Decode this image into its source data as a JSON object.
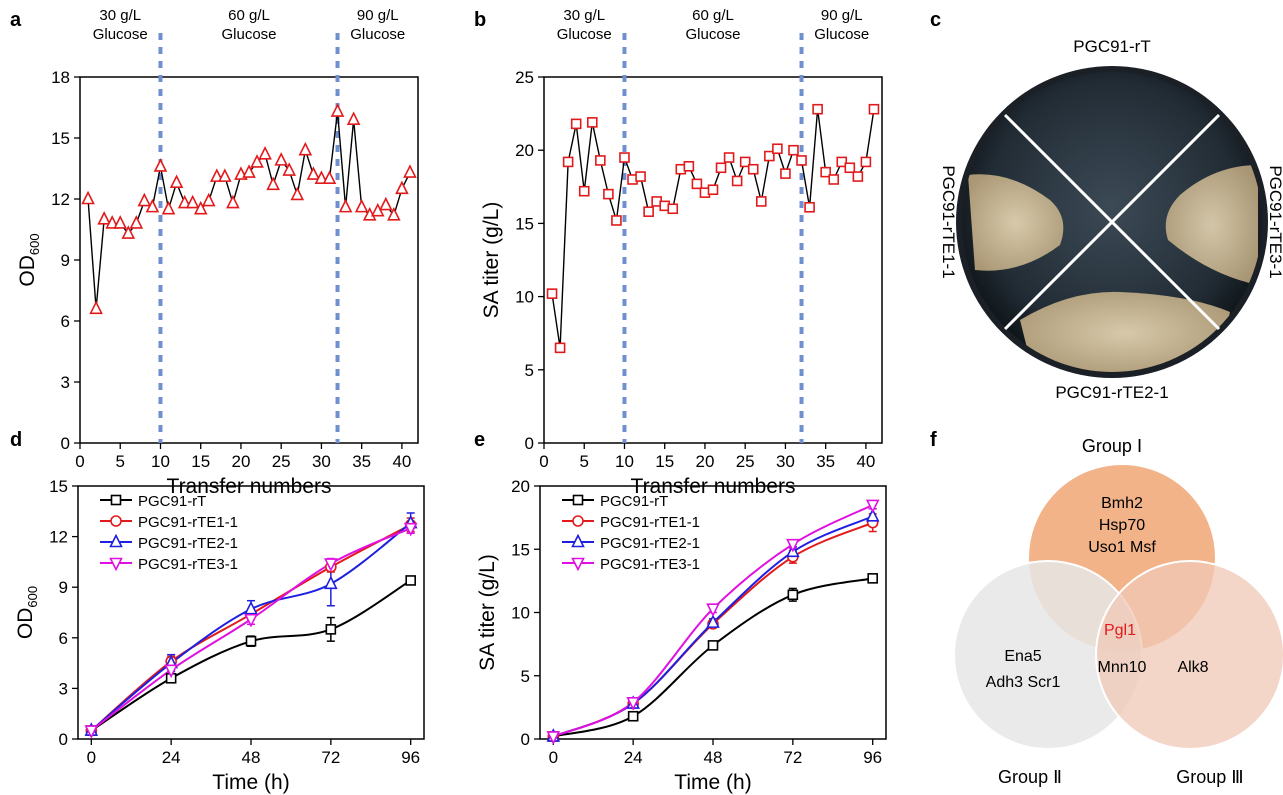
{
  "colors": {
    "red": "#e31a1c",
    "black": "#000000",
    "blue": "#1f1fe0",
    "magenta": "#e010e0",
    "divider": "#6f8fd0",
    "group1": "#f2b389",
    "group2": "#e6e6e6",
    "group3": "#f0c8b6",
    "pgl1": "#e31a1c"
  },
  "panel_labels": {
    "a": "a",
    "b": "b",
    "c": "c",
    "d": "d",
    "e": "e",
    "f": "f"
  },
  "chart_data": [
    {
      "id": "a",
      "type": "line",
      "marker": "triangle-up",
      "xlabel": "Transfer numbers",
      "ylabel": "OD",
      "ylabel_sub": "600",
      "xlim": [
        0,
        42
      ],
      "ylim": [
        0,
        18
      ],
      "xticks": [
        0,
        5,
        10,
        15,
        20,
        25,
        30,
        35,
        40
      ],
      "yticks": [
        0,
        3,
        6,
        9,
        12,
        15,
        18
      ],
      "dividers": [
        10,
        32
      ],
      "segments": [
        {
          "line1": "30 g/L",
          "line2": "Glucose"
        },
        {
          "line1": "60 g/L",
          "line2": "Glucose"
        },
        {
          "line1": "90 g/L",
          "line2": "Glucose"
        }
      ],
      "x": [
        1,
        2,
        3,
        4,
        5,
        6,
        7,
        8,
        9,
        10,
        11,
        12,
        13,
        14,
        15,
        16,
        17,
        18,
        19,
        20,
        21,
        22,
        23,
        24,
        25,
        26,
        27,
        28,
        29,
        30,
        31,
        32,
        33,
        34,
        35,
        36,
        37,
        38,
        39,
        40,
        41
      ],
      "values": [
        12.0,
        6.6,
        11.0,
        10.8,
        10.8,
        10.3,
        10.8,
        11.9,
        11.6,
        13.6,
        11.5,
        12.8,
        11.8,
        11.8,
        11.5,
        11.9,
        13.1,
        13.1,
        11.8,
        13.2,
        13.3,
        13.8,
        14.2,
        12.7,
        13.9,
        13.4,
        12.2,
        14.4,
        13.2,
        13.0,
        13.0,
        16.3,
        11.6,
        15.9,
        11.6,
        11.2,
        11.4,
        11.7,
        11.2,
        12.5,
        13.3
      ]
    },
    {
      "id": "b",
      "type": "line",
      "marker": "square",
      "xlabel": "Transfer numbers",
      "ylabel": "SA titer (g/L)",
      "xlim": [
        0,
        42
      ],
      "ylim": [
        0,
        25
      ],
      "xticks": [
        0,
        5,
        10,
        15,
        20,
        25,
        30,
        35,
        40
      ],
      "yticks": [
        0,
        5,
        10,
        15,
        20,
        25
      ],
      "dividers": [
        10,
        32
      ],
      "segments": [
        {
          "line1": "30 g/L",
          "line2": "Glucose"
        },
        {
          "line1": "60 g/L",
          "line2": "Glucose"
        },
        {
          "line1": "90 g/L",
          "line2": "Glucose"
        }
      ],
      "x": [
        1,
        2,
        3,
        4,
        5,
        6,
        7,
        8,
        9,
        10,
        11,
        12,
        13,
        14,
        15,
        16,
        17,
        18,
        19,
        20,
        21,
        22,
        23,
        24,
        25,
        26,
        27,
        28,
        29,
        30,
        31,
        32,
        33,
        34,
        35,
        36,
        37,
        38,
        39,
        40,
        41
      ],
      "values": [
        10.2,
        6.5,
        19.2,
        21.8,
        17.2,
        21.9,
        19.3,
        17.0,
        15.2,
        19.5,
        18.0,
        18.2,
        15.8,
        16.5,
        16.2,
        16.0,
        18.7,
        18.9,
        17.7,
        17.1,
        17.3,
        18.8,
        19.5,
        17.9,
        19.2,
        18.7,
        16.5,
        19.6,
        20.1,
        18.4,
        20.0,
        19.3,
        16.1,
        22.8,
        18.5,
        18.0,
        19.2,
        18.8,
        18.2,
        19.2,
        22.8
      ]
    },
    {
      "id": "d",
      "type": "line",
      "xlabel": "Time (h)",
      "ylabel": "OD",
      "ylabel_sub": "600",
      "xlim": [
        -4,
        100
      ],
      "ylim": [
        0,
        15
      ],
      "xticks": [
        0,
        24,
        48,
        72,
        96
      ],
      "yticks": [
        0,
        3,
        6,
        9,
        12,
        15
      ],
      "x": [
        0,
        24,
        48,
        72,
        96
      ],
      "series": [
        {
          "name": "PGC91-rT",
          "color": "black",
          "marker": "square",
          "values": [
            0.5,
            3.6,
            5.8,
            6.5,
            9.4
          ],
          "errors": [
            0.05,
            0.2,
            0.3,
            0.7,
            0.2
          ]
        },
        {
          "name": "PGC91-rTE1-1",
          "color": "red",
          "marker": "circle",
          "values": [
            0.5,
            4.6,
            7.4,
            10.2,
            12.7
          ],
          "errors": [
            0.05,
            0.3,
            0.3,
            0.3,
            0.4
          ]
        },
        {
          "name": "PGC91-rTE2-1",
          "color": "blue",
          "marker": "triangle-up",
          "values": [
            0.5,
            4.5,
            7.7,
            9.2,
            12.8
          ],
          "errors": [
            0.05,
            0.5,
            0.5,
            1.3,
            0.6
          ]
        },
        {
          "name": "PGC91-rTE3-1",
          "color": "magenta",
          "marker": "triangle-down",
          "values": [
            0.5,
            4.1,
            7.1,
            10.4,
            12.5
          ],
          "errors": [
            0.05,
            0.3,
            0.3,
            0.3,
            0.3
          ]
        }
      ]
    },
    {
      "id": "e",
      "type": "line",
      "xlabel": "Time (h)",
      "ylabel": "SA titer (g/L)",
      "xlim": [
        -4,
        100
      ],
      "ylim": [
        0,
        20
      ],
      "xticks": [
        0,
        24,
        48,
        72,
        96
      ],
      "yticks": [
        0,
        5,
        10,
        15,
        20
      ],
      "x": [
        0,
        24,
        48,
        72,
        96
      ],
      "series": [
        {
          "name": "PGC91-rT",
          "color": "black",
          "marker": "square",
          "values": [
            0.2,
            1.8,
            7.4,
            11.4,
            12.7
          ],
          "errors": [
            0.05,
            0.1,
            0.2,
            0.5,
            0.2
          ]
        },
        {
          "name": "PGC91-rTE1-1",
          "color": "red",
          "marker": "circle",
          "values": [
            0.2,
            2.8,
            9.1,
            14.4,
            17.1
          ],
          "errors": [
            0.05,
            0.1,
            0.3,
            0.5,
            0.7
          ]
        },
        {
          "name": "PGC91-rTE2-1",
          "color": "blue",
          "marker": "triangle-up",
          "values": [
            0.2,
            2.8,
            9.2,
            14.8,
            17.6
          ],
          "errors": [
            0.05,
            0.1,
            0.3,
            0.4,
            0.6
          ]
        },
        {
          "name": "PGC91-rTE3-1",
          "color": "magenta",
          "marker": "triangle-down",
          "values": [
            0.2,
            2.9,
            10.3,
            15.4,
            18.5
          ],
          "errors": [
            0.05,
            0.1,
            0.3,
            0.3,
            0.3
          ]
        }
      ]
    }
  ],
  "plate": {
    "top": "PGC91-rT",
    "left": "PGC91-rTE1-1",
    "right": "PGC91-rTE3-1",
    "bottom": "PGC91-rTE2-1"
  },
  "venn": {
    "group1": {
      "title": "Group Ⅰ",
      "genes_line1": "Bmh2",
      "genes_line2": "Hsp70",
      "genes_line3": "Uso1 Msf"
    },
    "group2": {
      "title": "Group Ⅱ",
      "genes_line1": "Ena5",
      "genes_line2": "Adh3 Scr1"
    },
    "group3": {
      "title": "Group Ⅲ",
      "genes_line1": "Alk8"
    },
    "center": "Pgl1",
    "overlap23": "Mnn10"
  }
}
